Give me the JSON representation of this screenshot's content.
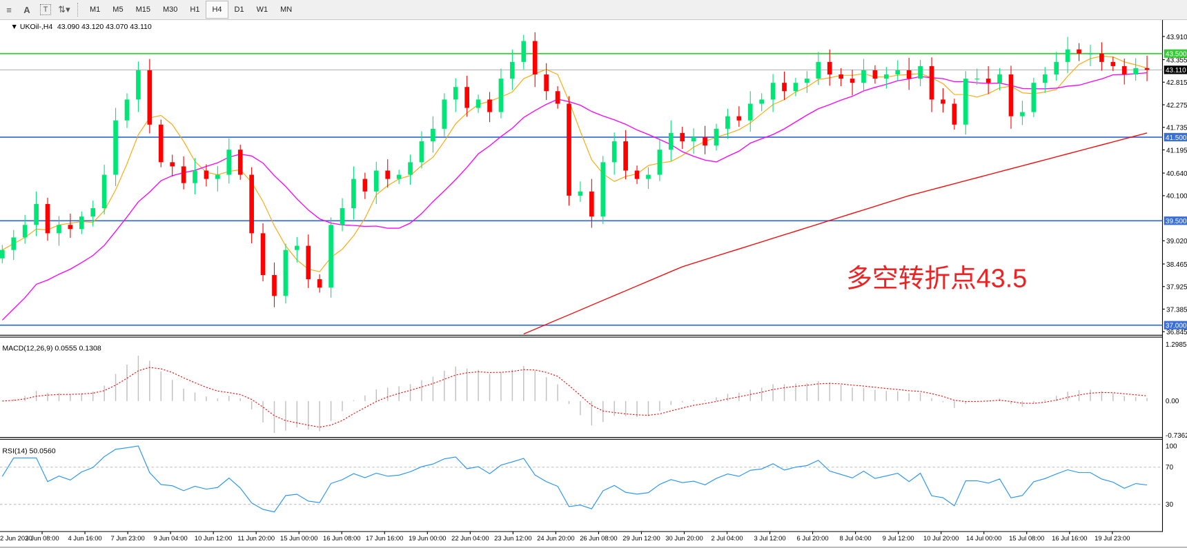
{
  "toolbar": {
    "icons": [
      "fibonacci-icon",
      "text-icon",
      "text-label-icon",
      "arrows-icon"
    ],
    "timeframes": [
      "M1",
      "M5",
      "M15",
      "M30",
      "H1",
      "H4",
      "D1",
      "W1",
      "MN"
    ],
    "active_timeframe": "H4"
  },
  "chart_header": {
    "symbol_label": "UKOil-,H4",
    "ohlc": "43.090 43.120 43.070 43.110"
  },
  "annotation": {
    "text": "多空转折点43.5",
    "color": "#ee2222"
  },
  "colors": {
    "bull": "#00e676",
    "bear": "#ff0000",
    "ma_fast": "#ffa500",
    "ma_mid": "#ff00ff",
    "ma_long": "#ff0000",
    "level_green": "#33cc33",
    "level_blue": "#3a6fd8",
    "rsi": "#1e90ff",
    "macd_hist": "#c0c0c0",
    "macd_signal": "#ff0000"
  },
  "chart_data": [
    {
      "type": "candlestick",
      "title": "UKOil-,H4",
      "ylim": [
        36.8,
        44.26
      ],
      "price_ticks": [
        "43.910",
        "43.355",
        "42.815",
        "42.275",
        "41.735",
        "41.195",
        "40.640",
        "40.100",
        "39.020",
        "38.465",
        "37.925",
        "37.385",
        "36.845"
      ],
      "closes": [
        38.8,
        39.1,
        39.4,
        39.9,
        39.2,
        39.4,
        39.3,
        39.6,
        39.8,
        40.6,
        41.9,
        42.4,
        43.1,
        41.8,
        40.9,
        40.8,
        40.4,
        40.7,
        40.5,
        40.6,
        41.2,
        40.6,
        39.2,
        38.2,
        37.7,
        38.8,
        38.9,
        38.1,
        37.9,
        39.4,
        39.8,
        40.5,
        40.2,
        40.7,
        40.5,
        40.6,
        40.9,
        41.4,
        41.7,
        42.4,
        42.7,
        42.2,
        42.4,
        42.1,
        42.9,
        43.3,
        43.8,
        43.0,
        42.6,
        42.3,
        40.1,
        40.2,
        39.6,
        40.9,
        41.4,
        40.7,
        40.5,
        40.6,
        41.2,
        41.6,
        41.4,
        41.5,
        41.3,
        41.7,
        42.0,
        41.9,
        42.3,
        42.4,
        42.8,
        42.6,
        42.8,
        42.9,
        43.3,
        43.0,
        42.9,
        42.8,
        43.1,
        42.9,
        43.0,
        43.1,
        42.9,
        43.2,
        42.4,
        42.3,
        41.8,
        42.9,
        42.9,
        42.8,
        43.0,
        42.0,
        42.1,
        42.8,
        43.0,
        43.3,
        43.6,
        43.5,
        43.5,
        43.3,
        43.2,
        43.0,
        43.15,
        43.11
      ],
      "ma_long_points": [
        [
          0,
          33.5
        ],
        [
          20,
          34.8
        ],
        [
          40,
          36.1
        ],
        [
          60,
          38.4
        ],
        [
          80,
          40.1
        ],
        [
          101,
          41.6
        ]
      ],
      "levels": [
        {
          "price": 43.5,
          "label": "43.500",
          "style": "green"
        },
        {
          "price": 43.11,
          "label": "43.110",
          "style": "current"
        },
        {
          "price": 41.5,
          "label": "41.500",
          "style": "blue"
        },
        {
          "price": 39.5,
          "label": "39.500",
          "style": "blue"
        },
        {
          "price": 37.0,
          "label": "37.000",
          "style": "blue"
        }
      ],
      "x_labels": [
        "2 Jun 2020",
        "3 Jun 08:00",
        "4 Jun 16:00",
        "7 Jun 23:00",
        "9 Jun 04:00",
        "10 Jun 12:00",
        "11 Jun 20:00",
        "15 Jun 00:00",
        "16 Jun 08:00",
        "17 Jun 16:00",
        "19 Jun 00:00",
        "22 Jun 04:00",
        "23 Jun 12:00",
        "24 Jun 20:00",
        "26 Jun 08:00",
        "29 Jun 12:00",
        "30 Jun 20:00",
        "2 Jul 04:00",
        "3 Jul 12:00",
        "6 Jul 20:00",
        "8 Jul 04:00",
        "9 Jul 12:00",
        "10 Jul 20:00",
        "14 Jul 00:00",
        "15 Jul 08:00",
        "16 Jul 16:00",
        "19 Jul 23:00"
      ]
    },
    {
      "type": "bar",
      "title": "MACD(12,26,9) 0.0555 0.1308",
      "ylim": [
        -0.7362,
        1.2985
      ],
      "ticks": [
        "1.2985",
        "0.00",
        "-0.7362"
      ]
    },
    {
      "type": "line",
      "title": "RSI(14) 50.0560",
      "ylim": [
        0,
        100
      ],
      "ticks": [
        "100",
        "70",
        "30"
      ],
      "levels": [
        70,
        30
      ]
    }
  ]
}
